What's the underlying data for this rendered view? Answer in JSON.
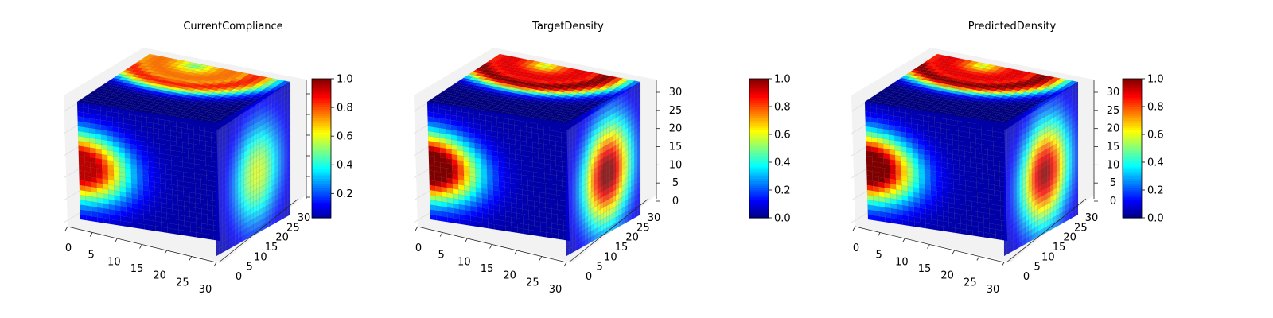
{
  "chart_data": [
    {
      "type": "voxel-3d",
      "title": "CurrentCompliance",
      "x_ticks": [
        "0",
        "5",
        "10",
        "15",
        "20",
        "25",
        "30"
      ],
      "y_ticks": [
        "0",
        "5",
        "10",
        "15",
        "20",
        "25",
        "30"
      ],
      "z_ticks": [],
      "xlim": [
        0,
        32
      ],
      "ylim": [
        0,
        32
      ],
      "zlim": [
        0,
        32
      ],
      "colormap": "jet",
      "colorbar": {
        "vmin": 0.03,
        "vmax": 1.0,
        "ticks": [
          "0.2",
          "0.4",
          "0.6",
          "0.8",
          "1.0"
        ]
      },
      "hotspots": [
        {
          "face": "top",
          "peak": 0.85,
          "spread": "wide arc"
        },
        {
          "face": "front",
          "peak": 0.9,
          "spread": "left edge"
        },
        {
          "face": "side",
          "peak": 0.55,
          "spread": "faint center"
        }
      ]
    },
    {
      "type": "voxel-3d",
      "title": "TargetDensity",
      "x_ticks": [
        "0",
        "5",
        "10",
        "15",
        "20",
        "25",
        "30"
      ],
      "y_ticks": [
        "0",
        "5",
        "10",
        "15",
        "20",
        "25",
        "30"
      ],
      "z_ticks": [
        "0",
        "5",
        "10",
        "15",
        "20",
        "25",
        "30"
      ],
      "xlim": [
        0,
        32
      ],
      "ylim": [
        0,
        32
      ],
      "zlim": [
        0,
        32
      ],
      "colormap": "jet",
      "colorbar": {
        "vmin": 0.0,
        "vmax": 1.0,
        "ticks": [
          "0.0",
          "0.2",
          "0.4",
          "0.6",
          "0.8",
          "1.0"
        ]
      },
      "hotspots": [
        {
          "face": "top",
          "peak": 1.0,
          "spread": "wide arc"
        },
        {
          "face": "front",
          "peak": 1.0,
          "spread": "left edge"
        },
        {
          "face": "side",
          "peak": 1.0,
          "spread": "center"
        }
      ]
    },
    {
      "type": "voxel-3d",
      "title": "PredictedDensity",
      "x_ticks": [
        "0",
        "5",
        "10",
        "15",
        "20",
        "25",
        "30"
      ],
      "y_ticks": [
        "0",
        "5",
        "10",
        "15",
        "20",
        "25",
        "30"
      ],
      "z_ticks": [
        "0",
        "5",
        "10",
        "15",
        "20",
        "25",
        "30"
      ],
      "xlim": [
        0,
        32
      ],
      "ylim": [
        0,
        32
      ],
      "zlim": [
        0,
        32
      ],
      "colormap": "jet",
      "colorbar": {
        "vmin": 0.0,
        "vmax": 1.0,
        "ticks": [
          "0.0",
          "0.2",
          "0.4",
          "0.6",
          "0.8",
          "1.0"
        ]
      },
      "hotspots": [
        {
          "face": "top",
          "peak": 1.0,
          "spread": "wide arc"
        },
        {
          "face": "front",
          "peak": 1.0,
          "spread": "left edge"
        },
        {
          "face": "side",
          "peak": 0.95,
          "spread": "center"
        }
      ]
    }
  ]
}
